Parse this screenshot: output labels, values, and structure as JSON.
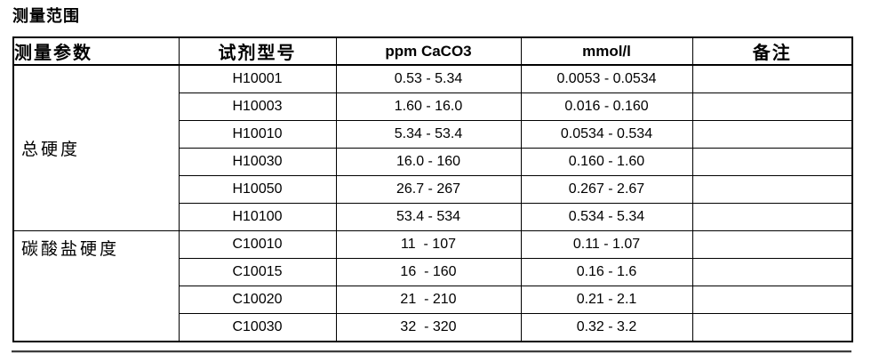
{
  "page": {
    "title": "测量范围"
  },
  "table": {
    "headers": [
      "测量参数",
      "试剂型号",
      "ppm CaCO3",
      "mmol/l",
      "备注"
    ],
    "sections": [
      {
        "parameter": "总硬度",
        "rows": [
          {
            "model": "H10001",
            "ppm": "0.53 - 5.34",
            "mmol": "0.0053 - 0.0534",
            "note": ""
          },
          {
            "model": "H10003",
            "ppm": "1.60 - 16.0",
            "mmol": "0.016 - 0.160",
            "note": ""
          },
          {
            "model": "H10010",
            "ppm": "5.34 - 53.4",
            "mmol": "0.0534 - 0.534",
            "note": ""
          },
          {
            "model": "H10030",
            "ppm": "16.0 - 160",
            "mmol": "0.160 - 1.60",
            "note": ""
          },
          {
            "model": "H10050",
            "ppm": "26.7 - 267",
            "mmol": "0.267 - 2.67",
            "note": ""
          },
          {
            "model": "H10100",
            "ppm": "53.4 - 534",
            "mmol": "0.534 - 5.34",
            "note": ""
          }
        ]
      },
      {
        "parameter": "碳酸盐硬度",
        "rows": [
          {
            "model": "C10010",
            "ppm": "11  - 107",
            "mmol": "0.11 - 1.07",
            "note": ""
          },
          {
            "model": "C10015",
            "ppm": "16  - 160",
            "mmol": "0.16 - 1.6",
            "note": ""
          },
          {
            "model": "C10020",
            "ppm": "21  - 210",
            "mmol": "0.21 - 2.1",
            "note": ""
          },
          {
            "model": "C10030",
            "ppm": "32  - 320",
            "mmol": "0.32 - 3.2",
            "note": ""
          }
        ]
      }
    ]
  },
  "colors": {
    "text": "#000000",
    "border": "#000000",
    "rule": "#3d3d3d",
    "background": "#ffffff"
  }
}
